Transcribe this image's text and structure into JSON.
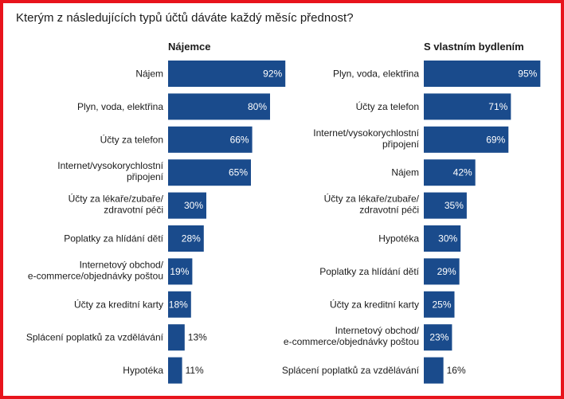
{
  "title": "Kterým z následujících typů účtů dáváte každý měsíc přednost?",
  "colors": {
    "bar": "#1a4b8c",
    "frame": "#e8141c"
  },
  "chart_data": [
    {
      "type": "bar",
      "orientation": "horizontal",
      "title": "Nájemce",
      "unit": "%",
      "xlim": [
        0,
        100
      ],
      "grid": false,
      "categories": [
        [
          "Nájem"
        ],
        [
          "Plyn, voda, elektřina"
        ],
        [
          "Účty za telefon"
        ],
        [
          "Internet/vysokorychlostní",
          "připojení"
        ],
        [
          "Účty za lékaře/zubaře/",
          "zdravotní péči"
        ],
        [
          "Poplatky za hlídání dětí"
        ],
        [
          "Internetový obchod/",
          "e-commerce/objednávky poštou"
        ],
        [
          "Účty za kreditní karty"
        ],
        [
          "Splácení poplatků za vzdělávání"
        ],
        [
          "Hypotéka"
        ]
      ],
      "values": [
        92,
        80,
        66,
        65,
        30,
        28,
        19,
        18,
        13,
        11
      ],
      "value_labels": [
        "92%",
        "80%",
        "66%",
        "65%",
        "30%",
        "28%",
        "19%",
        "18%",
        "13%",
        "11%"
      ]
    },
    {
      "type": "bar",
      "orientation": "horizontal",
      "title": "S vlastním bydlením",
      "unit": "%",
      "xlim": [
        0,
        100
      ],
      "grid": false,
      "categories": [
        [
          "Plyn, voda, elektřina"
        ],
        [
          "Účty za telefon"
        ],
        [
          "Internet/vysokorychlostní",
          "připojení"
        ],
        [
          "Nájem"
        ],
        [
          "Účty za lékaře/zubaře/",
          "zdravotní péči"
        ],
        [
          "Hypotéka"
        ],
        [
          "Poplatky za hlídání dětí"
        ],
        [
          "Účty za kreditní karty"
        ],
        [
          "Internetový obchod/",
          "e-commerce/objednávky poštou"
        ],
        [
          "Splácení poplatků za vzdělávání"
        ]
      ],
      "values": [
        95,
        71,
        69,
        42,
        35,
        30,
        29,
        25,
        23,
        16
      ],
      "value_labels": [
        "95%",
        "71%",
        "69%",
        "42%",
        "35%",
        "30%",
        "29%",
        "25%",
        "23%",
        "16%"
      ]
    }
  ]
}
